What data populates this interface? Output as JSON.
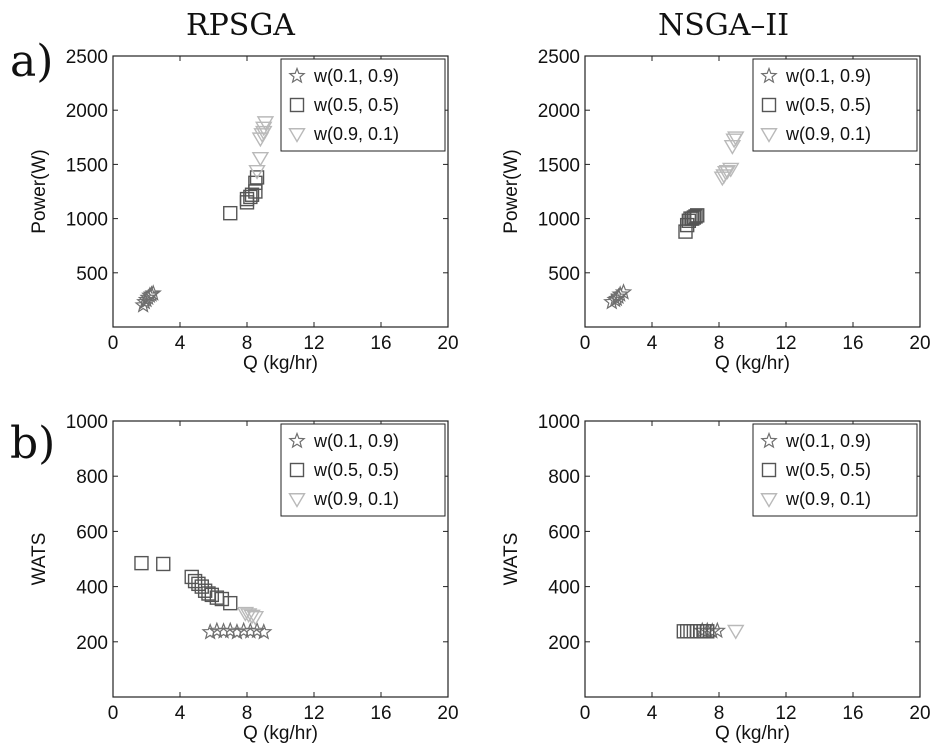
{
  "figure": {
    "col_titles": [
      "RPSGA",
      "NSGA–II"
    ],
    "row_labels": [
      "a)",
      "b)"
    ]
  },
  "series_styles": [
    {
      "name": "w(0.1, 0.9)",
      "marker": "star",
      "color": "#6f6f6f"
    },
    {
      "name": "w(0.5, 0.5)",
      "marker": "square",
      "color": "#555555"
    },
    {
      "name": "w(0.9, 0.1)",
      "marker": "triangle-down",
      "color": "#b9b9b9"
    }
  ],
  "chart_data": [
    {
      "type": "scatter",
      "title": "RPSGA",
      "xlabel": "Q (kg/hr)",
      "ylabel": "Power(W)",
      "xlim": [
        0,
        20
      ],
      "ylim": [
        0,
        2500
      ],
      "xticks": [
        0,
        4,
        8,
        12,
        16,
        20
      ],
      "yticks": [
        500,
        1000,
        1500,
        2000,
        2500
      ],
      "legend": "top-right",
      "series": [
        {
          "name": "w(0.1, 0.9)",
          "points": [
            [
              1.8,
              200
            ],
            [
              1.9,
              230
            ],
            [
              2.0,
              250
            ],
            [
              2.1,
              270
            ],
            [
              2.2,
              290
            ],
            [
              2.3,
              300
            ],
            [
              2.4,
              310
            ]
          ]
        },
        {
          "name": "w(0.5, 0.5)",
          "points": [
            [
              7.0,
              1050
            ],
            [
              8.0,
              1150
            ],
            [
              8.0,
              1180
            ],
            [
              8.2,
              1200
            ],
            [
              8.3,
              1220
            ],
            [
              8.5,
              1250
            ],
            [
              8.5,
              1330
            ],
            [
              8.6,
              1380
            ]
          ]
        },
        {
          "name": "w(0.9, 0.1)",
          "points": [
            [
              8.6,
              1440
            ],
            [
              8.8,
              1560
            ],
            [
              8.8,
              1740
            ],
            [
              8.9,
              1780
            ],
            [
              9.0,
              1800
            ],
            [
              9.0,
              1840
            ],
            [
              9.1,
              1890
            ]
          ]
        }
      ]
    },
    {
      "type": "scatter",
      "title": "NSGA–II",
      "xlabel": "Q (kg/hr)",
      "ylabel": "Power(W)",
      "xlim": [
        0,
        20
      ],
      "ylim": [
        0,
        2500
      ],
      "xticks": [
        0,
        4,
        8,
        12,
        16,
        20
      ],
      "yticks": [
        500,
        1000,
        1500,
        2000,
        2500
      ],
      "legend": "top-right",
      "series": [
        {
          "name": "w(0.1, 0.9)",
          "points": [
            [
              1.6,
              230
            ],
            [
              1.8,
              250
            ],
            [
              1.9,
              260
            ],
            [
              2.0,
              280
            ],
            [
              2.1,
              300
            ],
            [
              2.3,
              320
            ]
          ]
        },
        {
          "name": "w(0.5, 0.5)",
          "points": [
            [
              6.0,
              880
            ],
            [
              6.1,
              940
            ],
            [
              6.2,
              980
            ],
            [
              6.3,
              1000
            ],
            [
              6.4,
              1000
            ],
            [
              6.5,
              1010
            ],
            [
              6.6,
              1020
            ],
            [
              6.7,
              1030
            ]
          ]
        },
        {
          "name": "w(0.9, 0.1)",
          "points": [
            [
              8.2,
              1380
            ],
            [
              8.3,
              1400
            ],
            [
              8.4,
              1430
            ],
            [
              8.5,
              1440
            ],
            [
              8.7,
              1460
            ],
            [
              8.8,
              1670
            ],
            [
              8.9,
              1730
            ],
            [
              9.0,
              1750
            ]
          ]
        }
      ]
    },
    {
      "type": "scatter",
      "title": "RPSGA",
      "xlabel": "Q (kg/hr)",
      "ylabel": "WATS",
      "xlim": [
        0,
        20
      ],
      "ylim": [
        0,
        1000
      ],
      "xticks": [
        0,
        4,
        8,
        12,
        16,
        20
      ],
      "yticks": [
        200,
        400,
        600,
        800,
        1000
      ],
      "legend": "top-right",
      "series": [
        {
          "name": "w(0.1, 0.9)",
          "points": [
            [
              5.8,
              235
            ],
            [
              6.2,
              240
            ],
            [
              6.6,
              238
            ],
            [
              7.0,
              240
            ],
            [
              7.4,
              235
            ],
            [
              7.8,
              240
            ],
            [
              8.2,
              238
            ],
            [
              8.6,
              240
            ],
            [
              9.0,
              235
            ]
          ]
        },
        {
          "name": "w(0.5, 0.5)",
          "points": [
            [
              1.7,
              485
            ],
            [
              3.0,
              482
            ],
            [
              4.7,
              435
            ],
            [
              4.9,
              420
            ],
            [
              5.1,
              410
            ],
            [
              5.3,
              400
            ],
            [
              5.5,
              385
            ],
            [
              5.7,
              375
            ],
            [
              5.9,
              370
            ],
            [
              6.2,
              360
            ],
            [
              6.5,
              355
            ],
            [
              7.0,
              340
            ]
          ]
        },
        {
          "name": "w(0.9, 0.1)",
          "points": [
            [
              7.9,
              305
            ],
            [
              8.1,
              300
            ],
            [
              8.3,
              295
            ],
            [
              8.5,
              290
            ]
          ]
        }
      ]
    },
    {
      "type": "scatter",
      "title": "NSGA–II",
      "xlabel": "Q (kg/hr)",
      "ylabel": "WATS",
      "xlim": [
        0,
        20
      ],
      "ylim": [
        0,
        1000
      ],
      "xticks": [
        0,
        4,
        8,
        12,
        16,
        20
      ],
      "yticks": [
        200,
        400,
        600,
        800,
        1000
      ],
      "legend": "top-right",
      "series": [
        {
          "name": "w(0.1, 0.9)",
          "points": [
            [
              7.0,
              240
            ],
            [
              7.3,
              240
            ],
            [
              7.6,
              238
            ],
            [
              7.9,
              240
            ]
          ]
        },
        {
          "name": "w(0.5, 0.5)",
          "points": [
            [
              5.9,
              238
            ],
            [
              6.1,
              238
            ],
            [
              6.3,
              238
            ],
            [
              6.5,
              238
            ],
            [
              6.7,
              238
            ],
            [
              6.9,
              238
            ],
            [
              7.1,
              238
            ],
            [
              7.3,
              238
            ]
          ]
        },
        {
          "name": "w(0.9, 0.1)",
          "points": [
            [
              9.0,
              240
            ]
          ]
        }
      ]
    }
  ]
}
